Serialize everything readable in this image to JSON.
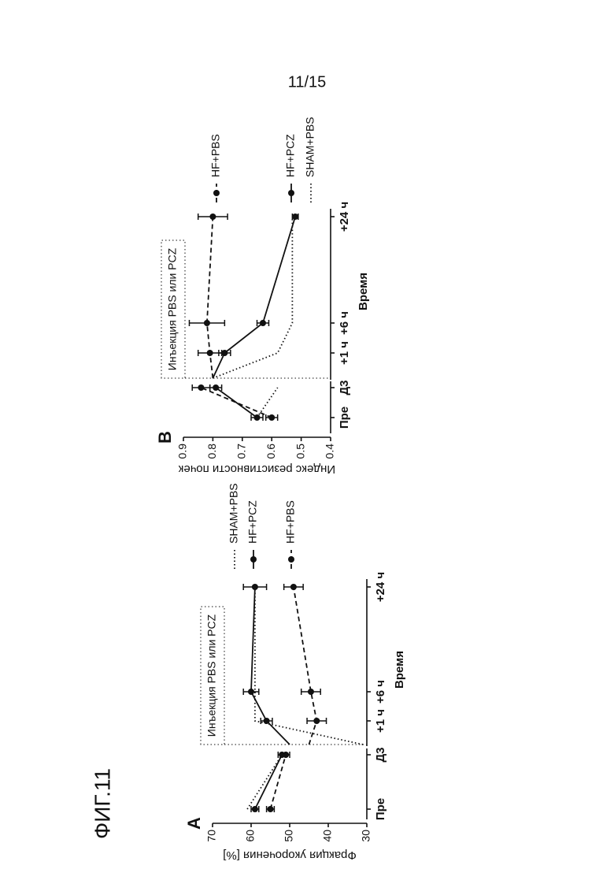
{
  "page_number": "11/15",
  "figure_label": "ФИГ.11",
  "chart_data": [
    {
      "type": "line",
      "panel": "A",
      "ylabel": "Фракция укорочения [%]",
      "xlabel": "Время",
      "annotation": "Инъекция PBS или PCZ",
      "categories": [
        "Пре",
        "Д3",
        null,
        "+1 ч",
        "+6 ч",
        "+24 ч"
      ],
      "ylim": [
        30,
        70
      ],
      "yticks": [
        30,
        40,
        50,
        60,
        70
      ],
      "series": [
        {
          "name": "SHAM+PBS",
          "color": "#111111",
          "style": "dotted",
          "values": [
            61,
            52,
            31,
            59,
            59,
            59
          ]
        },
        {
          "name": "HF+PCZ",
          "color": "#111111",
          "style": "solid",
          "values": [
            59,
            52,
            50,
            56,
            60,
            59
          ],
          "errors": [
            1,
            1,
            null,
            1.5,
            2,
            3
          ]
        },
        {
          "name": "HF+PBS",
          "color": "#111111",
          "style": "dashed",
          "values": [
            55,
            51,
            45,
            43,
            44.5,
            49
          ],
          "errors": [
            1,
            1,
            null,
            2.5,
            2.5,
            2.5
          ]
        }
      ]
    },
    {
      "type": "line",
      "panel": "B",
      "ylabel": "Индекс резистивности почек",
      "xlabel": "Время",
      "annotation": "Инъекция PBS или PCZ",
      "categories": [
        "Пре",
        "Д3",
        null,
        "+1 ч",
        "+6 ч",
        "+24 ч"
      ],
      "ylim": [
        0.4,
        0.9
      ],
      "yticks": [
        0.4,
        0.5,
        0.6,
        0.7,
        0.8,
        0.9
      ],
      "series": [
        {
          "name": "HF+PBS",
          "color": "#111111",
          "style": "dashed",
          "values": [
            0.6,
            0.84,
            0.8,
            0.81,
            0.82,
            0.8
          ],
          "errors": [
            0.02,
            0.03,
            null,
            0.04,
            0.06,
            0.05
          ]
        },
        {
          "name": "HF+PCZ",
          "color": "#111111",
          "style": "solid",
          "values": [
            0.65,
            0.79,
            0.8,
            0.76,
            0.63,
            0.52
          ],
          "errors": [
            0.02,
            0.02,
            null,
            0.02,
            0.02,
            0.01
          ]
        },
        {
          "name": "SHAM+PBS",
          "color": "#111111",
          "style": "dotted",
          "values": [
            0.65,
            0.58,
            0.8,
            0.58,
            0.53,
            0.53
          ]
        }
      ]
    }
  ]
}
